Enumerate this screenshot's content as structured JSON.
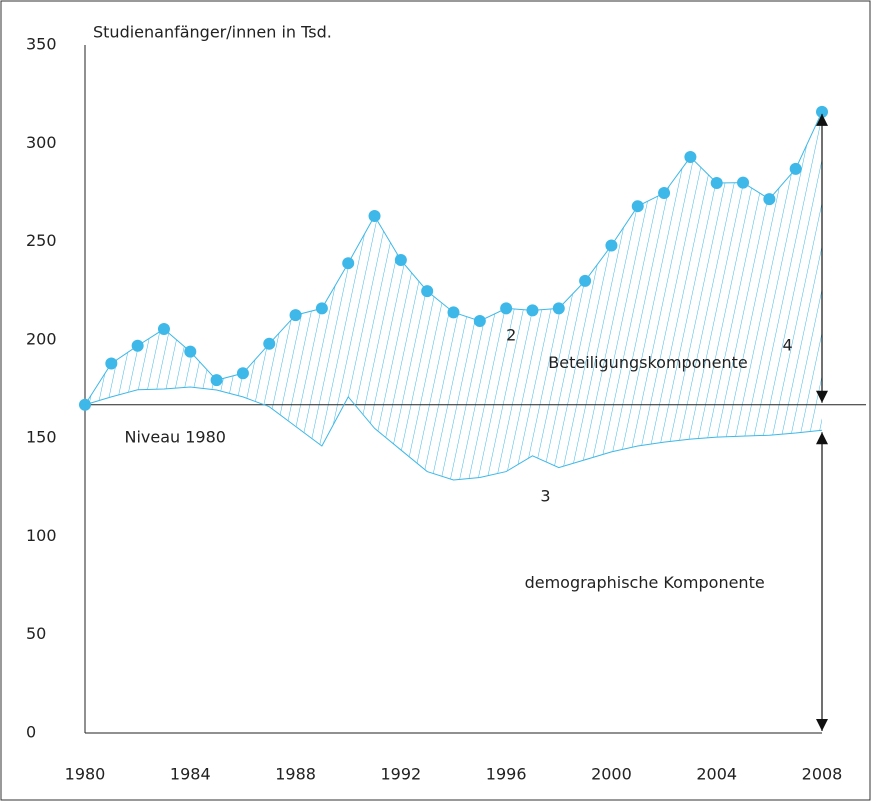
{
  "chart_data": {
    "type": "line",
    "y_axis_label": "Studienanfänger/innen in Tsd.",
    "x": [
      1980,
      1981,
      1982,
      1983,
      1984,
      1985,
      1986,
      1987,
      1988,
      1989,
      1990,
      1991,
      1992,
      1993,
      1994,
      1995,
      1996,
      1997,
      1998,
      1999,
      2000,
      2001,
      2002,
      2003,
      2004,
      2005,
      2006,
      2007,
      2008
    ],
    "series": [
      {
        "color": "#3db8e8",
        "markers": true,
        "values": [
          167,
          188,
          197,
          205.5,
          194,
          179.5,
          183,
          198,
          212.6,
          216,
          239,
          263,
          240.6,
          224.8,
          214,
          209.6,
          216,
          215,
          216,
          230,
          248,
          268,
          274.7,
          293,
          279.8,
          280,
          271.6,
          287,
          316
        ]
      },
      {
        "color": "#3db8e8",
        "markers": false,
        "values": [
          167,
          171,
          174.6,
          175,
          176,
          174.5,
          171,
          166,
          156,
          146,
          171,
          155,
          144,
          133,
          128.7,
          130,
          133,
          141,
          135,
          139,
          143,
          146,
          148,
          149.5,
          150.5,
          151,
          151.5,
          152.6,
          154
        ]
      }
    ],
    "baseline": 167,
    "annotations": [
      {
        "text": "Niveau 1980",
        "x": 1981.5,
        "y": 150
      },
      {
        "text": "Beteiligungskomponente",
        "x": 1997.6,
        "y": 188
      },
      {
        "text": "demographische Komponente",
        "x": 1996.7,
        "y": 76
      },
      {
        "text": "2",
        "x": 1996,
        "y": 202
      },
      {
        "text": "3",
        "x": 1997.3,
        "y": 120
      },
      {
        "text": "4",
        "x": 2006.5,
        "y": 197
      }
    ],
    "xlim": [
      1980,
      2008
    ],
    "xticks": [
      1980,
      1984,
      1988,
      1992,
      1996,
      2000,
      2004,
      2008
    ],
    "ylim": [
      0,
      350
    ],
    "yticks": [
      0,
      50,
      100,
      150,
      200,
      250,
      300,
      350
    ],
    "grid": false
  }
}
